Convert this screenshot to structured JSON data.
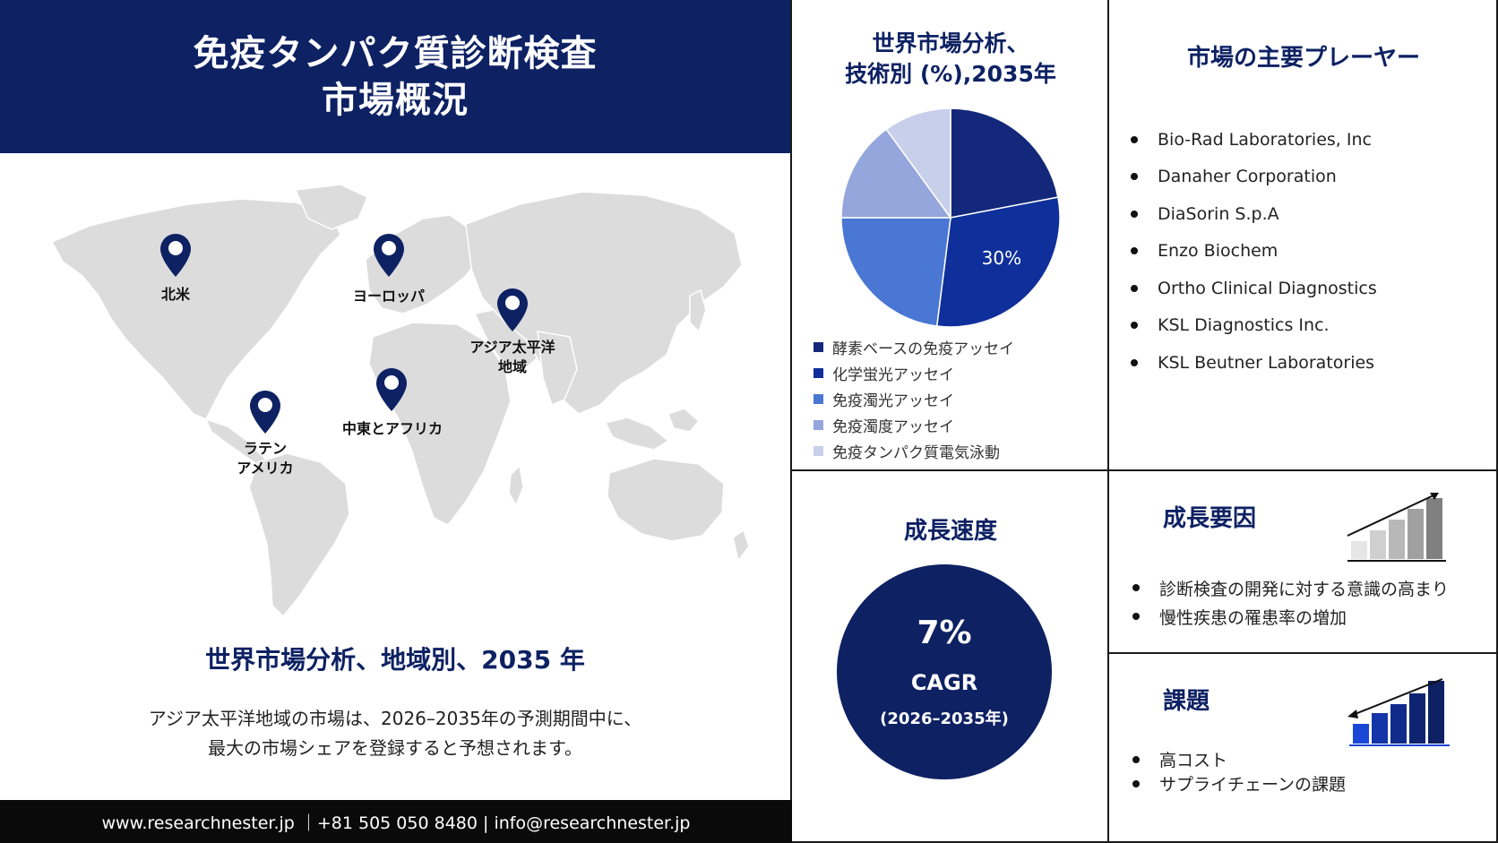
{
  "left": {
    "title_line1": "免疫タンパク質診断検査",
    "title_line2": "市場概況",
    "regions": [
      {
        "key": "north_america",
        "label_lines": [
          "北米"
        ]
      },
      {
        "key": "europe",
        "label_lines": [
          "ヨーロッパ"
        ]
      },
      {
        "key": "asia_pacific",
        "label_lines": [
          "アジア太平洋",
          "地域"
        ]
      },
      {
        "key": "mea",
        "label_lines": [
          "中東とアフリカ"
        ]
      },
      {
        "key": "latin_america",
        "label_lines": [
          "ラテン",
          "アメリカ"
        ]
      }
    ],
    "region_title": "世界市場分析、地域別、2035 年",
    "region_desc_line1": "アジア太平洋地域の市場は、2026–2035年の予測期間中に、",
    "region_desc_line2": "最大の市場シェアを登録すると予想されます。",
    "footer": "www.researchnester.jp ｜+81 505 050 8480 | info@researchnester.jp"
  },
  "pie": {
    "title_line1": "世界市場分析、",
    "title_line2": "技術別 (%),2035年"
  },
  "chart_data": {
    "type": "pie",
    "title": "世界市場分析、技術別 (%),2035年",
    "series": [
      {
        "name": "酵素ベースの免疫アッセイ",
        "value": 22,
        "color": "#13287a"
      },
      {
        "name": "化学蛍光アッセイ",
        "value": 30,
        "color": "#0f2f9a"
      },
      {
        "name": "免疫濁光アッセイ",
        "value": 23,
        "color": "#4a77d4"
      },
      {
        "name": "免疫濁度アッセイ",
        "value": 15,
        "color": "#94a6dc"
      },
      {
        "name": "免疫タンパク質電気泳動",
        "value": 10,
        "color": "#c8cfeb"
      }
    ],
    "data_labels": [
      {
        "series": "化学蛍光アッセイ",
        "text": "30%"
      }
    ],
    "legend_position": "bottom"
  },
  "players": {
    "title": "市場の主要プレーヤー",
    "items": [
      "Bio-Rad Laboratories, Inc",
      "Danaher Corporation",
      "DiaSorin S.p.A",
      "Enzo Biochem",
      "Ortho Clinical Diagnostics",
      "KSL Diagnostics Inc.",
      "KSL Beutner Laboratories"
    ]
  },
  "growth": {
    "title": "成長速度",
    "cagr_value": "7%",
    "cagr_label": "CAGR",
    "cagr_period": "(2026–2035年)"
  },
  "drivers": {
    "title": "成長要因",
    "items": [
      "診断検査の開発に対する意識の高まり",
      "慢性疾患の罹患率の増加"
    ]
  },
  "challenges": {
    "title": "課題",
    "items": [
      "高コスト",
      "サプライチェーンの課題"
    ]
  },
  "colors": {
    "brand_navy": "#0d2163",
    "map_gray": "#dcdcdc",
    "footer_bg": "#0a0a0a"
  }
}
